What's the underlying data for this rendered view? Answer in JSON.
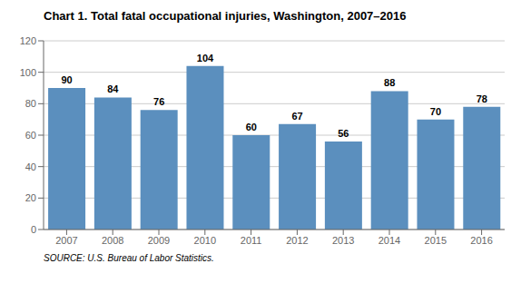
{
  "chart_data": {
    "type": "bar",
    "title": "Chart 1. Total fatal occupational injuries, Washington, 2007–2016",
    "categories": [
      "2007",
      "2008",
      "2009",
      "2010",
      "2011",
      "2012",
      "2013",
      "2014",
      "2015",
      "2016"
    ],
    "values": [
      90,
      84,
      76,
      104,
      60,
      67,
      56,
      88,
      70,
      78
    ],
    "color": "#5b8fbe",
    "ylim": [
      0,
      120
    ],
    "yticks": [
      0,
      20,
      40,
      60,
      80,
      100,
      120
    ],
    "grid": true,
    "data_labels": true,
    "annotations": [
      "SOURCE: U.S. Bureau of Labor Statistics."
    ]
  }
}
